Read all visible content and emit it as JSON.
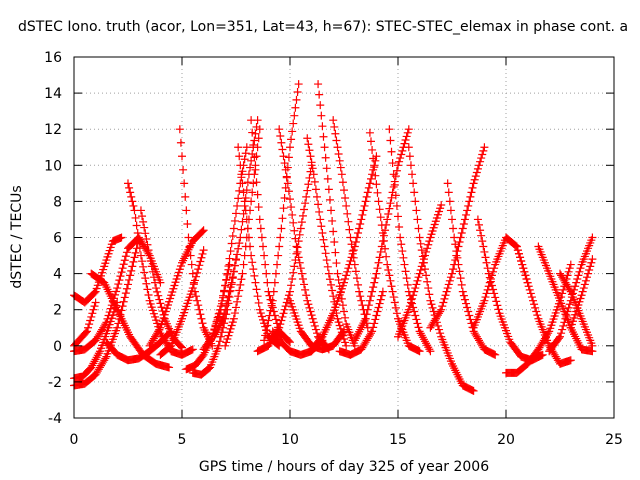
{
  "chart_data": {
    "type": "scatter",
    "title": "dSTEC Iono. truth (acor, Lon=351, Lat=43, h=67): STEC-STEC_elemax in phase cont. a",
    "xlabel": "GPS time / hours of day 325 of year 2006",
    "ylabel": "dSTEC  / TECUs",
    "xlim": [
      0,
      25
    ],
    "ylim": [
      -4,
      16
    ],
    "xticks": [
      0,
      5,
      10,
      15,
      20,
      25
    ],
    "yticks": [
      -4,
      -2,
      0,
      2,
      4,
      6,
      8,
      10,
      12,
      14,
      16
    ],
    "grid": true,
    "marker": "+",
    "color": "#ff0000",
    "series": [
      {
        "x": [
          0.0,
          0.5,
          1.0,
          1.5,
          2.0,
          2.5,
          3.0,
          3.5,
          4.0
        ],
        "y": [
          -0.3,
          -0.2,
          0.3,
          1.3,
          3.2,
          5.4,
          6.0,
          5.0,
          3.5
        ]
      },
      {
        "x": [
          0.0,
          0.5,
          1.0,
          1.4,
          1.8,
          2.2
        ],
        "y": [
          2.8,
          2.4,
          3.0,
          4.4,
          5.8,
          6.0
        ]
      },
      {
        "x": [
          0.0,
          0.5,
          1.0,
          1.5,
          2.0,
          2.5,
          3.0
        ],
        "y": [
          -2.2,
          -2.1,
          -1.6,
          -0.6,
          1.0,
          3.4,
          5.9
        ]
      },
      {
        "x": [
          0.0,
          0.4,
          0.8,
          1.2,
          1.6,
          2.0
        ],
        "y": [
          -1.8,
          -1.7,
          -1.2,
          -0.3,
          1.0,
          2.4
        ]
      },
      {
        "x": [
          0.0,
          0.6,
          1.0
        ],
        "y": [
          0.0,
          0.8,
          2.4
        ]
      },
      {
        "x": [
          0.8,
          1.4,
          2.0,
          2.6,
          3.2,
          3.8,
          4.4
        ],
        "y": [
          4.0,
          3.5,
          2.0,
          0.5,
          -0.5,
          -1.0,
          -1.2
        ]
      },
      {
        "x": [
          1.5,
          2.0,
          2.5,
          3.0,
          3.5,
          4.0,
          4.5
        ],
        "y": [
          0.2,
          -0.5,
          -0.8,
          -0.7,
          -0.3,
          0.2,
          0.8
        ]
      },
      {
        "x": [
          2.5,
          2.8,
          3.1,
          3.5,
          4.0,
          4.5,
          5.0,
          5.5
        ],
        "y": [
          9.0,
          7.5,
          5.0,
          2.5,
          0.7,
          -0.3,
          -0.5,
          -0.2
        ]
      },
      {
        "x": [
          3.1,
          3.4,
          3.8,
          4.2,
          4.6,
          5.0
        ],
        "y": [
          7.5,
          5.6,
          3.2,
          1.5,
          0.4,
          -0.1
        ]
      },
      {
        "x": [
          3.5,
          4.0,
          4.5,
          5.0,
          5.5,
          6.0
        ],
        "y": [
          0.0,
          1.0,
          2.8,
          4.6,
          5.8,
          6.4
        ]
      },
      {
        "x": [
          4.0,
          4.5,
          5.0,
          5.5,
          6.0
        ],
        "y": [
          -0.5,
          0.0,
          1.5,
          3.2,
          5.3
        ]
      },
      {
        "x": [
          4.9,
          5.1,
          5.3,
          5.6,
          6.0,
          6.4
        ],
        "y": [
          12.0,
          9.0,
          6.0,
          3.0,
          1.0,
          0.0
        ]
      },
      {
        "x": [
          5.2,
          5.6,
          6.0,
          6.4,
          6.8,
          7.2
        ],
        "y": [
          -1.3,
          -1.1,
          -0.5,
          0.5,
          2.2,
          4.5
        ]
      },
      {
        "x": [
          5.5,
          5.9,
          6.3,
          6.7,
          7.1,
          7.5
        ],
        "y": [
          -1.5,
          -1.6,
          -1.2,
          0.0,
          2.0,
          4.8
        ]
      },
      {
        "x": [
          6.0,
          6.4,
          6.8,
          7.1,
          7.4,
          7.7,
          8.0
        ],
        "y": [
          -0.2,
          0.5,
          2.0,
          4.0,
          6.5,
          9.0,
          11.0
        ]
      },
      {
        "x": [
          6.5,
          6.9,
          7.3,
          7.7,
          8.1,
          8.5
        ],
        "y": [
          0.5,
          1.5,
          3.5,
          6.0,
          9.5,
          12.5
        ]
      },
      {
        "x": [
          7.0,
          7.4,
          7.8,
          8.2,
          8.6
        ],
        "y": [
          0.0,
          1.5,
          4.0,
          8.0,
          12.0
        ]
      },
      {
        "x": [
          7.6,
          7.9,
          8.2,
          8.6,
          9.0,
          9.5
        ],
        "y": [
          11.0,
          8.0,
          5.0,
          2.0,
          0.5,
          0.0
        ]
      },
      {
        "x": [
          8.2,
          8.6,
          9.0,
          9.5,
          10.0
        ],
        "y": [
          12.5,
          7.0,
          3.0,
          0.8,
          0.2
        ]
      },
      {
        "x": [
          8.5,
          9.0,
          9.5,
          10.0,
          10.5,
          11.0
        ],
        "y": [
          -0.3,
          0.0,
          1.0,
          3.0,
          6.5,
          10.0
        ]
      },
      {
        "x": [
          8.8,
          9.2,
          9.6,
          10.0,
          10.4
        ],
        "y": [
          0.3,
          2.5,
          6.5,
          11.0,
          14.5
        ]
      },
      {
        "x": [
          9.2,
          9.6,
          10.0,
          10.5,
          11.0,
          11.5
        ],
        "y": [
          0.8,
          0.2,
          -0.3,
          -0.5,
          -0.3,
          0.3
        ]
      },
      {
        "x": [
          9.5,
          9.9,
          10.3,
          10.8,
          11.3,
          11.8
        ],
        "y": [
          12.0,
          9.0,
          5.5,
          2.5,
          0.5,
          -0.2
        ]
      },
      {
        "x": [
          10.0,
          10.5,
          11.0,
          11.5,
          12.0,
          12.5
        ],
        "y": [
          2.5,
          0.8,
          0.0,
          -0.2,
          0.0,
          0.8
        ]
      },
      {
        "x": [
          10.8,
          11.1,
          11.4,
          11.8,
          12.2,
          12.6
        ],
        "y": [
          11.5,
          9.5,
          7.0,
          4.0,
          1.5,
          0.0
        ]
      },
      {
        "x": [
          11.3,
          11.6,
          11.9,
          12.2,
          12.6,
          13.0
        ],
        "y": [
          14.5,
          11.0,
          7.5,
          4.0,
          1.2,
          0.0
        ]
      },
      {
        "x": [
          11.0,
          11.5,
          12.0,
          12.5,
          13.0,
          13.5,
          14.0
        ],
        "y": [
          -0.2,
          0.5,
          1.8,
          3.5,
          5.5,
          8.0,
          10.5
        ]
      },
      {
        "x": [
          12.0,
          12.4,
          12.8,
          13.2,
          13.6
        ],
        "y": [
          12.5,
          9.5,
          6.0,
          3.0,
          1.0
        ]
      },
      {
        "x": [
          12.3,
          12.8,
          13.3,
          13.8,
          14.3
        ],
        "y": [
          -0.3,
          -0.5,
          -0.2,
          0.8,
          3.0
        ]
      },
      {
        "x": [
          13.0,
          13.5,
          14.0,
          14.5,
          15.0,
          15.5
        ],
        "y": [
          0.3,
          1.5,
          4.0,
          7.0,
          10.0,
          12.0
        ]
      },
      {
        "x": [
          13.7,
          14.1,
          14.5,
          15.0,
          15.5,
          16.0
        ],
        "y": [
          11.8,
          8.0,
          4.5,
          1.5,
          0.0,
          -0.3
        ]
      },
      {
        "x": [
          14.6,
          14.8,
          15.1,
          15.5,
          16.0,
          16.5
        ],
        "y": [
          12.0,
          9.5,
          6.0,
          3.0,
          0.8,
          -0.3
        ]
      },
      {
        "x": [
          15.0,
          15.5,
          16.0,
          16.5,
          17.0
        ],
        "y": [
          0.5,
          2.0,
          4.0,
          6.0,
          7.8
        ]
      },
      {
        "x": [
          15.5,
          16.0,
          16.5,
          17.0,
          17.5,
          18.0,
          18.5
        ],
        "y": [
          11.0,
          6.0,
          2.5,
          0.5,
          -1.0,
          -2.2,
          -2.5
        ]
      },
      {
        "x": [
          16.5,
          17.0,
          17.5,
          18.0,
          18.5,
          19.0
        ],
        "y": [
          1.0,
          2.0,
          4.0,
          6.5,
          9.0,
          11.0
        ]
      },
      {
        "x": [
          17.3,
          17.6,
          18.0,
          18.5,
          19.0,
          19.5
        ],
        "y": [
          9.0,
          6.0,
          3.0,
          0.8,
          -0.2,
          -0.5
        ]
      },
      {
        "x": [
          18.7,
          19.2,
          19.7,
          20.2,
          20.7,
          21.2,
          21.7
        ],
        "y": [
          7.0,
          4.0,
          1.8,
          0.2,
          -0.6,
          -0.8,
          -0.5
        ]
      },
      {
        "x": [
          18.5,
          19.0,
          19.5,
          20.0,
          20.5,
          21.0
        ],
        "y": [
          1.0,
          2.5,
          4.5,
          6.0,
          5.5,
          3.5
        ]
      },
      {
        "x": [
          20.0,
          20.5,
          21.0,
          21.5,
          22.0,
          22.5,
          23.0
        ],
        "y": [
          -1.5,
          -1.5,
          -1.0,
          -0.2,
          0.8,
          2.5,
          4.5
        ]
      },
      {
        "x": [
          20.5,
          21.0,
          21.5,
          22.0,
          22.5,
          23.0
        ],
        "y": [
          5.5,
          3.5,
          1.5,
          0.0,
          -1.0,
          -0.8
        ]
      },
      {
        "x": [
          21.5,
          22.0,
          22.5,
          23.0,
          23.5,
          24.0
        ],
        "y": [
          5.5,
          4.0,
          2.5,
          1.0,
          -0.2,
          -0.3
        ]
      },
      {
        "x": [
          22.0,
          22.5,
          23.0,
          23.5,
          24.0
        ],
        "y": [
          -0.3,
          0.5,
          2.5,
          4.5,
          6.0
        ]
      },
      {
        "x": [
          22.5,
          23.0,
          23.5,
          24.0
        ],
        "y": [
          4.0,
          3.0,
          1.5,
          0.0
        ]
      },
      {
        "x": [
          23.0,
          23.5,
          24.0
        ],
        "y": [
          1.0,
          2.8,
          4.8
        ]
      }
    ]
  }
}
